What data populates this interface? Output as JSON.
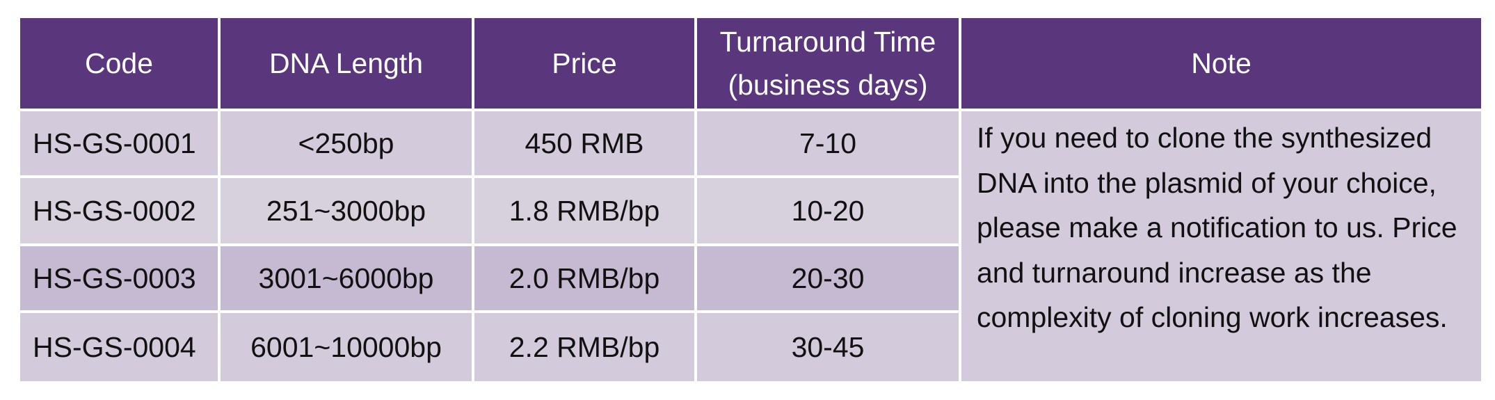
{
  "table": {
    "headers": {
      "code": "Code",
      "length": "DNA Length",
      "price": "Price",
      "turnaround_line1": "Turnaround Time",
      "turnaround_line2": "(business days)",
      "note": "Note"
    },
    "rows": [
      {
        "code": "HS-GS-0001",
        "length": "<250bp",
        "price": "450 RMB",
        "turnaround": "7-10"
      },
      {
        "code": "HS-GS-0002",
        "length": "251~3000bp",
        "price": "1.8 RMB/bp",
        "turnaround": "10-20"
      },
      {
        "code": "HS-GS-0003",
        "length": "3001~6000bp",
        "price": "2.0 RMB/bp",
        "turnaround": "20-30"
      },
      {
        "code": "HS-GS-0004",
        "length": "6001~10000bp",
        "price": "2.2 RMB/bp",
        "turnaround": "30-45"
      }
    ],
    "note": "If you need to clone the synthesized DNA into the plasmid of your choice, please make a notification to us. Price and turnaround increase as the complexity of cloning work increases."
  },
  "colors": {
    "header_bg": "#5a377d",
    "header_text": "#ffffff",
    "row_light": "#d3cadb",
    "row_alt": "#d7d0dd",
    "row_dark": "#c6b9d2"
  }
}
